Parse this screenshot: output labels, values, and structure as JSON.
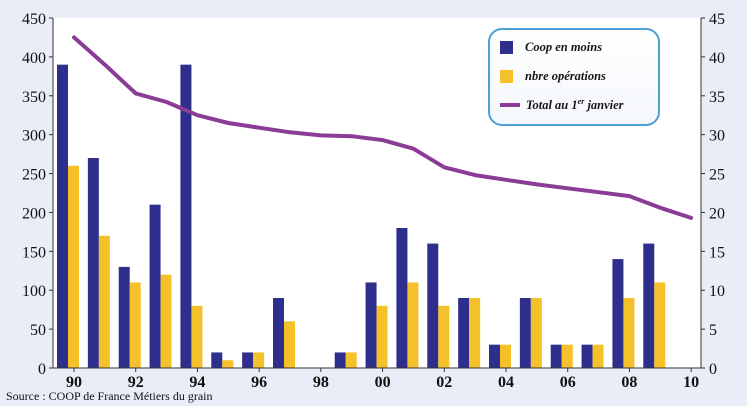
{
  "chart_data": {
    "type": "bar",
    "categories": [
      "90",
      "91",
      "92",
      "93",
      "94",
      "95",
      "96",
      "97",
      "98",
      "99",
      "00",
      "01",
      "02",
      "03",
      "04",
      "05",
      "06",
      "07",
      "08",
      "09",
      "10"
    ],
    "x_tick_labels": [
      "90",
      "92",
      "94",
      "96",
      "98",
      "00",
      "02",
      "04",
      "06",
      "08",
      "10"
    ],
    "y_left": {
      "ylim": [
        0,
        450
      ],
      "ticks": [
        "0",
        "50",
        "100",
        "150",
        "200",
        "250",
        "300",
        "350",
        "400",
        "450"
      ]
    },
    "y_right": {
      "ylim": [
        0,
        45
      ],
      "ticks": [
        "0",
        "5",
        "10",
        "15",
        "20",
        "25",
        "30",
        "35",
        "40",
        "45"
      ]
    },
    "grid": false,
    "legend_position": "top-right",
    "series": [
      {
        "name": "Coop en moins",
        "kind": "bar",
        "axis": "left",
        "color": "#2e2e8c",
        "values": [
          390,
          270,
          130,
          210,
          390,
          20,
          20,
          90,
          0,
          20,
          110,
          180,
          160,
          90,
          30,
          90,
          30,
          30,
          140,
          160,
          null
        ]
      },
      {
        "name": "nbre opérations",
        "kind": "bar",
        "axis": "left",
        "color": "#f5c12a",
        "values": [
          260,
          170,
          110,
          120,
          80,
          10,
          20,
          60,
          0,
          20,
          80,
          110,
          80,
          90,
          30,
          90,
          30,
          30,
          90,
          110,
          null
        ]
      },
      {
        "name": "Total au 1er janvier",
        "name_base": "Total au 1",
        "name_sup": "er",
        "name_tail": " janvier",
        "kind": "line",
        "axis": "right",
        "color": "#8b3c96",
        "values": [
          42.5,
          39,
          35.3,
          34.2,
          32.5,
          31.5,
          30.9,
          30.3,
          29.9,
          29.8,
          29.3,
          28.2,
          25.8,
          24.8,
          24.2,
          23.6,
          23.1,
          22.6,
          22.1,
          20.6,
          19.3
        ]
      }
    ]
  },
  "source": "Source : COOP de France Métiers du grain"
}
